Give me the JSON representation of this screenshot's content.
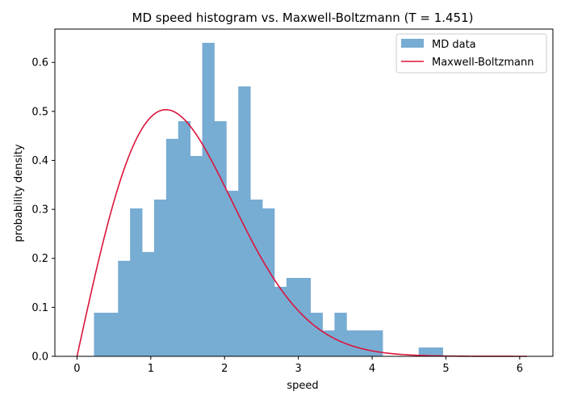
{
  "chart_data": {
    "type": "bar",
    "title": "MD speed histogram vs. Maxwell-Boltzmann (T = 1.451)",
    "xlabel": "speed",
    "ylabel": "probability density",
    "xlim": [
      -0.3,
      6.45
    ],
    "ylim": [
      0,
      0.668
    ],
    "xticks": [
      0,
      1,
      2,
      3,
      4,
      5,
      6
    ],
    "yticks": [
      0.0,
      0.1,
      0.2,
      0.3,
      0.4,
      0.5,
      0.6
    ],
    "xtick_labels": [
      "0",
      "1",
      "2",
      "3",
      "4",
      "5",
      "6"
    ],
    "ytick_labels": [
      "0.0",
      "0.1",
      "0.2",
      "0.3",
      "0.4",
      "0.5",
      "0.6"
    ],
    "grid": false,
    "legend_position": "top-right",
    "histogram": {
      "name": "MD data",
      "color": "#77acd3",
      "bin_start": 0.23,
      "bin_width": 0.163,
      "values": [
        0.089,
        0.089,
        0.195,
        0.302,
        0.213,
        0.32,
        0.444,
        0.48,
        0.409,
        0.64,
        0.48,
        0.338,
        0.551,
        0.32,
        0.302,
        0.142,
        0.16,
        0.16,
        0.089,
        0.053,
        0.089,
        0.053,
        0.053,
        0.053,
        0.0,
        0.0,
        0.0,
        0.018,
        0.018
      ]
    },
    "curve": {
      "name": "Maxwell-Boltzmann",
      "color": "#dc143c",
      "type": "line",
      "temperature": 1.451,
      "x_range": [
        0.0,
        6.1
      ]
    },
    "colors": {
      "axes": "#000000",
      "background": "#ffffff",
      "legend_border": "#cccccc"
    }
  }
}
